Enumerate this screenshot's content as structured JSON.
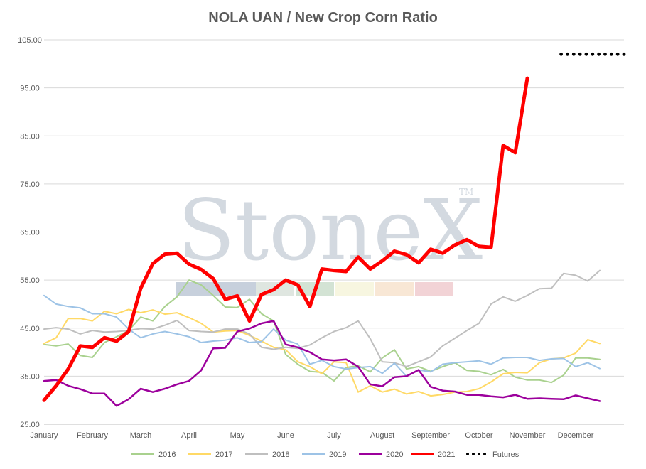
{
  "chart_data": {
    "type": "line",
    "title": "NOLA UAN / New Crop Corn Ratio",
    "xlabel": "",
    "ylabel": "",
    "ylim": [
      25,
      105
    ],
    "yticks": [
      "25.00",
      "35.00",
      "45.00",
      "55.00",
      "65.00",
      "75.00",
      "85.00",
      "95.00",
      "105.00"
    ],
    "xticks": [
      "January",
      "February",
      "March",
      "April",
      "May",
      "June",
      "July",
      "August",
      "September",
      "October",
      "November",
      "December"
    ],
    "grid": true,
    "legend_position": "bottom",
    "watermark": "StoneX",
    "watermark_tm": "TM",
    "watermark_colors": [
      "#c7d0dc",
      "#dfe6e0",
      "#d3e3d4",
      "#f7f6e0",
      "#f8e7d5",
      "#f2d3d6"
    ],
    "series": [
      {
        "name": "2016",
        "color": "#a9d18e",
        "width": 2,
        "x": [
          0,
          0.25,
          0.5,
          0.75,
          1,
          1.25,
          1.5,
          1.75,
          2,
          2.25,
          2.5,
          2.75,
          3,
          3.25,
          3.5,
          3.75,
          4,
          4.25,
          4.5,
          4.75,
          5,
          5.25,
          5.5,
          5.75,
          6,
          6.25,
          6.5,
          6.75,
          7,
          7.25,
          7.5,
          7.75,
          8,
          8.25,
          8.5,
          8.75,
          9,
          9.25,
          9.5,
          9.75,
          10,
          10.25,
          10.5,
          10.75,
          11,
          11.25,
          11.5
        ],
        "values": [
          41.6,
          41.3,
          41.7,
          39.3,
          38.9,
          42.0,
          43.2,
          44.5,
          47.3,
          46.5,
          49.5,
          51.5,
          55.0,
          54.0,
          51.8,
          49.4,
          49.3,
          51.0,
          48.0,
          46.5,
          39.5,
          37.5,
          36.0,
          35.8,
          34.0,
          36.8,
          37.2,
          35.9,
          38.8,
          40.5,
          36.5,
          37.0,
          36.0,
          37.0,
          37.8,
          36.2,
          36.0,
          35.3,
          36.4,
          34.8,
          34.2,
          34.2,
          33.7,
          35.2,
          38.8,
          38.8,
          38.5
        ]
      },
      {
        "name": "2017",
        "color": "#ffd966",
        "width": 2,
        "x": [
          0,
          0.25,
          0.5,
          0.75,
          1,
          1.25,
          1.5,
          1.75,
          2,
          2.25,
          2.5,
          2.75,
          3,
          3.25,
          3.5,
          3.75,
          4,
          4.25,
          4.5,
          4.75,
          5,
          5.25,
          5.5,
          5.75,
          6,
          6.25,
          6.5,
          6.75,
          7,
          7.25,
          7.5,
          7.75,
          8,
          8.25,
          8.5,
          8.75,
          9,
          9.25,
          9.5,
          9.75,
          10,
          10.25,
          10.5,
          10.75,
          11,
          11.25,
          11.5
        ],
        "values": [
          41.8,
          43.0,
          47.0,
          47.0,
          46.5,
          48.5,
          48.0,
          48.9,
          48.2,
          48.8,
          47.9,
          48.2,
          47.2,
          46.0,
          44.2,
          44.4,
          44.5,
          43.5,
          42.3,
          41.0,
          40.5,
          38.0,
          37.0,
          35.5,
          38.0,
          37.8,
          31.7,
          33.0,
          31.7,
          32.3,
          31.3,
          31.8,
          30.9,
          31.2,
          31.7,
          31.8,
          32.4,
          33.8,
          35.5,
          35.8,
          35.7,
          37.8,
          38.6,
          38.8,
          39.8,
          42.6,
          41.8
        ]
      },
      {
        "name": "2018",
        "color": "#bfbfbf",
        "width": 2,
        "x": [
          0,
          0.25,
          0.5,
          0.75,
          1,
          1.25,
          1.5,
          1.75,
          2,
          2.25,
          2.5,
          2.75,
          3,
          3.25,
          3.5,
          3.75,
          4,
          4.25,
          4.5,
          4.75,
          5,
          5.25,
          5.5,
          5.75,
          6,
          6.25,
          6.5,
          6.75,
          7,
          7.25,
          7.5,
          7.75,
          8,
          8.25,
          8.5,
          8.75,
          9,
          9.25,
          9.5,
          9.75,
          10,
          10.25,
          10.5,
          10.75,
          11,
          11.25,
          11.5
        ],
        "values": [
          44.8,
          45.1,
          44.8,
          43.8,
          44.5,
          44.2,
          44.3,
          44.5,
          44.9,
          44.8,
          45.6,
          46.6,
          44.5,
          44.3,
          44.2,
          44.8,
          44.8,
          43.8,
          41.0,
          40.6,
          41.0,
          40.8,
          41.5,
          43.0,
          44.3,
          45.1,
          46.5,
          42.8,
          38.0,
          37.8,
          37.0,
          38.0,
          39.0,
          41.3,
          42.9,
          44.5,
          46.0,
          50.0,
          51.5,
          50.6,
          51.8,
          53.2,
          53.3,
          56.4,
          56.0,
          54.8,
          57.0
        ]
      },
      {
        "name": "2019",
        "color": "#9dc3e6",
        "width": 2,
        "x": [
          0,
          0.25,
          0.5,
          0.75,
          1,
          1.25,
          1.5,
          1.75,
          2,
          2.25,
          2.5,
          2.75,
          3,
          3.25,
          3.5,
          3.75,
          4,
          4.25,
          4.5,
          4.75,
          5,
          5.25,
          5.5,
          5.75,
          6,
          6.25,
          6.5,
          6.75,
          7,
          7.25,
          7.5,
          7.75,
          8,
          8.25,
          8.5,
          8.75,
          9,
          9.25,
          9.5,
          9.75,
          10,
          10.25,
          10.5,
          10.75,
          11,
          11.25,
          11.5
        ],
        "values": [
          51.8,
          50.0,
          49.5,
          49.2,
          48.0,
          48.0,
          47.3,
          44.8,
          43.0,
          43.8,
          44.3,
          43.8,
          43.2,
          42.0,
          42.3,
          42.5,
          43.0,
          42.0,
          42.2,
          44.8,
          42.5,
          41.7,
          37.5,
          38.3,
          37.0,
          36.5,
          36.8,
          37.0,
          35.6,
          37.7,
          35.0,
          36.3,
          35.9,
          37.5,
          37.8,
          38.0,
          38.2,
          37.5,
          38.8,
          38.9,
          38.9,
          38.3,
          38.6,
          38.7,
          37.0,
          37.8,
          36.6
        ]
      },
      {
        "name": "2020",
        "color": "#9c009c",
        "width": 2.5,
        "x": [
          0,
          0.25,
          0.5,
          0.75,
          1,
          1.25,
          1.5,
          1.75,
          2,
          2.25,
          2.5,
          2.75,
          3,
          3.25,
          3.5,
          3.75,
          4,
          4.25,
          4.5,
          4.75,
          5,
          5.25,
          5.5,
          5.75,
          6,
          6.25,
          6.5,
          6.75,
          7,
          7.25,
          7.5,
          7.75,
          8,
          8.25,
          8.5,
          8.75,
          9,
          9.25,
          9.5,
          9.75,
          10,
          10.25,
          10.5,
          10.75,
          11,
          11.25,
          11.5
        ],
        "values": [
          34.0,
          34.2,
          33.0,
          32.3,
          31.4,
          31.4,
          28.8,
          30.2,
          32.4,
          31.7,
          32.4,
          33.3,
          34.0,
          36.2,
          40.8,
          40.9,
          44.3,
          44.9,
          46.0,
          46.5,
          41.6,
          41.0,
          40.0,
          38.5,
          38.3,
          38.5,
          37.0,
          33.3,
          32.9,
          34.8,
          35.0,
          36.3,
          32.8,
          32.0,
          31.8,
          31.1,
          31.1,
          30.8,
          30.6,
          31.1,
          30.3,
          30.4,
          30.3,
          30.2,
          31.0,
          30.4,
          29.8
        ]
      },
      {
        "name": "2021",
        "color": "#ff0000",
        "width": 5,
        "x": [
          0,
          0.25,
          0.5,
          0.75,
          1,
          1.25,
          1.5,
          1.75,
          2,
          2.25,
          2.5,
          2.75,
          3,
          3.25,
          3.5,
          3.75,
          4,
          4.25,
          4.5,
          4.75,
          5,
          5.25,
          5.5,
          5.75,
          6,
          6.25,
          6.5,
          6.75,
          7,
          7.25,
          7.5,
          7.75,
          8,
          8.25,
          8.5,
          8.75,
          9,
          9.25,
          9.5,
          9.75,
          10
        ],
        "values": [
          30.0,
          33.0,
          36.5,
          41.3,
          41.0,
          43.0,
          42.3,
          44.3,
          53.3,
          58.4,
          60.4,
          60.6,
          58.3,
          57.2,
          55.3,
          51.0,
          51.7,
          46.5,
          52.0,
          53.0,
          55.0,
          54.0,
          49.5,
          57.3,
          57.0,
          56.8,
          59.8,
          57.3,
          59.0,
          61.0,
          60.3,
          58.6,
          61.4,
          60.6,
          62.3,
          63.4,
          62.0,
          61.8,
          83.0,
          81.5,
          97.0
        ]
      },
      {
        "name": "Futures",
        "color": "#000000",
        "width": 4,
        "dotted": true,
        "x": [
          10.7,
          11.0,
          11.25,
          11.5,
          11.75,
          12.0
        ],
        "values": [
          102.0,
          102.0,
          102.0,
          102.0,
          102.0,
          102.0
        ]
      }
    ]
  }
}
